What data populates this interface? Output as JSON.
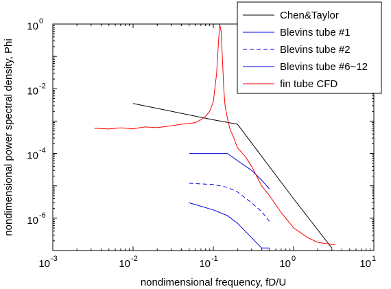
{
  "chart_data": {
    "type": "line",
    "xlabel": "nondimensional frequency, fD/U",
    "ylabel": "nondimensional power spectral density, Phi",
    "x_scale": "log",
    "y_scale": "log",
    "xlim": [
      0.001,
      10
    ],
    "ylim": [
      1e-07,
      1
    ],
    "grid": false,
    "legend_position": "top-right",
    "x_ticks": [
      {
        "base": "10",
        "exp": "-3"
      },
      {
        "base": "10",
        "exp": "-2"
      },
      {
        "base": "10",
        "exp": "-1"
      },
      {
        "base": "10",
        "exp": "0"
      },
      {
        "base": "10",
        "exp": "1"
      }
    ],
    "y_ticks": [
      {
        "base": "10",
        "exp": "-6"
      },
      {
        "base": "10",
        "exp": "-4"
      },
      {
        "base": "10",
        "exp": "-2"
      },
      {
        "base": "10",
        "exp": "0"
      }
    ],
    "series": [
      {
        "name": "Chen&Taylor",
        "color": "#000000",
        "style": "solid",
        "x": [
          0.01,
          0.1,
          0.2,
          1.0,
          3.0
        ],
        "y": [
          0.0035,
          0.0011,
          0.0008,
          4e-06,
          1.2e-07
        ]
      },
      {
        "name": "Blevins tube #1",
        "color": "#0000dd",
        "style": "solid",
        "x": [
          0.05,
          0.1,
          0.15,
          0.2,
          0.3,
          0.4,
          0.5
        ],
        "y": [
          0.0001,
          0.0001,
          0.0001,
          6e-05,
          3e-05,
          1.5e-05,
          8e-06
        ]
      },
      {
        "name": "Blevins tube #2",
        "color": "#0000dd",
        "style": "dashed",
        "x": [
          0.05,
          0.1,
          0.15,
          0.2,
          0.3,
          0.4,
          0.5
        ],
        "y": [
          1.2e-05,
          1.1e-05,
          9e-06,
          6.5e-06,
          3e-06,
          1.6e-06,
          8e-07
        ]
      },
      {
        "name": "Blevins tube #6~12",
        "color": "#0000dd",
        "style": "solid",
        "x": [
          0.05,
          0.1,
          0.15,
          0.2,
          0.3,
          0.4,
          0.5
        ],
        "y": [
          3e-06,
          1.8e-06,
          1.2e-06,
          7e-07,
          2.5e-07,
          1.2e-07,
          1.2e-07
        ]
      },
      {
        "name": "fin tube CFD",
        "color": "#ff0000",
        "style": "solid",
        "x": [
          0.0033,
          0.005,
          0.007,
          0.01,
          0.014,
          0.02,
          0.03,
          0.04,
          0.05,
          0.06,
          0.07,
          0.08,
          0.09,
          0.1,
          0.11,
          0.115,
          0.12,
          0.125,
          0.13,
          0.135,
          0.14,
          0.15,
          0.16,
          0.18,
          0.2,
          0.25,
          0.3,
          0.4,
          0.5,
          0.7,
          1.0,
          1.5,
          2.0,
          3.3
        ],
        "y": [
          0.0006,
          0.00057,
          0.00062,
          0.00058,
          0.00066,
          0.00063,
          0.00072,
          0.0008,
          0.00085,
          0.0009,
          0.0011,
          0.0014,
          0.002,
          0.004,
          0.03,
          0.2,
          1.0,
          0.6,
          0.08,
          0.01,
          0.003,
          0.0012,
          0.0006,
          0.0003,
          0.00015,
          8e-05,
          4e-05,
          1e-05,
          5e-06,
          1.5e-06,
          5e-07,
          2.5e-07,
          1.8e-07,
          1.5e-07
        ]
      }
    ]
  }
}
